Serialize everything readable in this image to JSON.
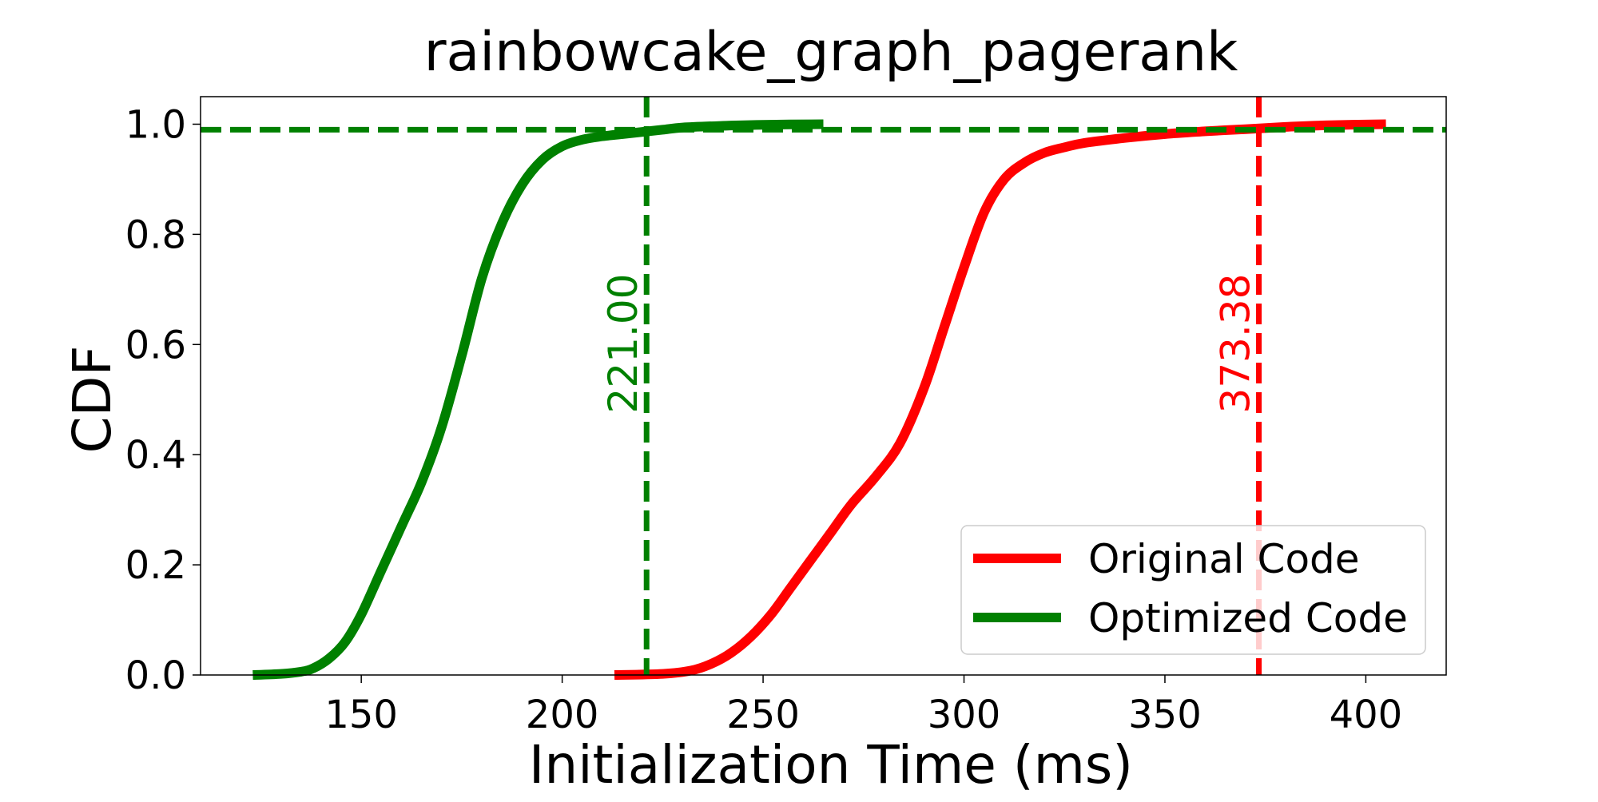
{
  "chart_data": {
    "type": "line",
    "title": "rainbowcake_graph_pagerank",
    "xlabel": "Initialization Time (ms)",
    "ylabel": "CDF",
    "xlim": [
      110,
      420
    ],
    "ylim": [
      0.0,
      1.05
    ],
    "xticks": [
      150,
      200,
      250,
      300,
      350,
      400
    ],
    "xtick_labels": [
      "150",
      "200",
      "250",
      "300",
      "350",
      "400"
    ],
    "yticks": [
      0.0,
      0.2,
      0.4,
      0.6,
      0.8,
      1.0
    ],
    "ytick_labels": [
      "0.0",
      "0.2",
      "0.4",
      "0.6",
      "0.8",
      "1.0"
    ],
    "grid": false,
    "legend_position": "lower-right",
    "series": [
      {
        "name": "Original Code",
        "color": "#ff0000",
        "x": [
          213,
          225,
          232,
          237,
          242,
          247,
          252,
          257,
          262,
          267,
          272,
          278,
          284,
          290,
          295,
          300,
          305,
          310,
          315,
          320,
          325,
          330,
          340,
          350,
          360,
          370,
          380,
          390,
          405
        ],
        "y": [
          0.0,
          0.002,
          0.008,
          0.02,
          0.04,
          0.07,
          0.11,
          0.16,
          0.21,
          0.26,
          0.31,
          0.36,
          0.42,
          0.52,
          0.63,
          0.74,
          0.84,
          0.9,
          0.93,
          0.948,
          0.958,
          0.966,
          0.975,
          0.982,
          0.987,
          0.991,
          0.995,
          0.998,
          1.0
        ]
      },
      {
        "name": "Optimized Code",
        "color": "#008000",
        "x": [
          123,
          130,
          135,
          138,
          142,
          146,
          150,
          155,
          160,
          165,
          170,
          175,
          180,
          185,
          190,
          195,
          200,
          205,
          210,
          215,
          220,
          225,
          230,
          240,
          250,
          265
        ],
        "y": [
          0.0,
          0.002,
          0.006,
          0.012,
          0.03,
          0.06,
          0.11,
          0.19,
          0.27,
          0.35,
          0.45,
          0.58,
          0.72,
          0.82,
          0.89,
          0.935,
          0.96,
          0.972,
          0.978,
          0.982,
          0.986,
          0.99,
          0.994,
          0.997,
          0.999,
          1.0
        ]
      }
    ],
    "reference_lines": [
      {
        "orientation": "vertical",
        "x": 373.38,
        "label": "373.38",
        "color": "#ff0000",
        "style": "dashed"
      },
      {
        "orientation": "vertical",
        "x": 221.0,
        "label": "221.00",
        "color": "#008000",
        "style": "dashed"
      },
      {
        "orientation": "horizontal",
        "y": 0.99,
        "color": "#008000",
        "style": "dashed"
      }
    ]
  }
}
